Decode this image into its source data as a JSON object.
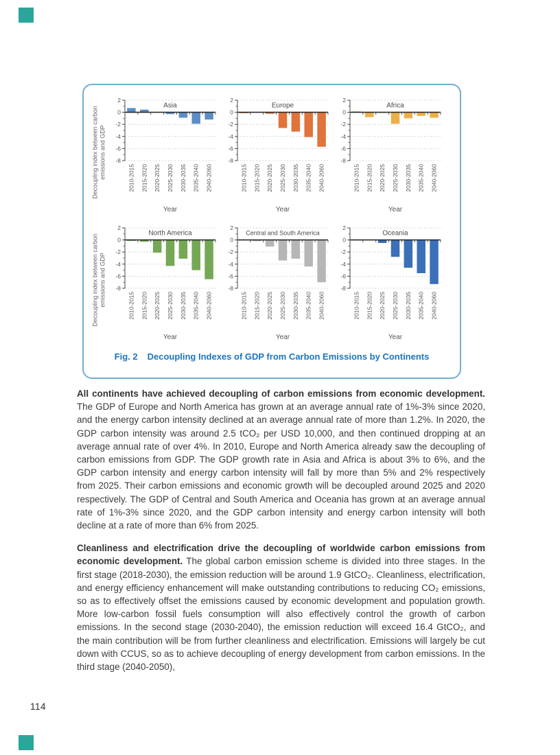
{
  "page": {
    "number": "114",
    "accent_color": "#2aa69a"
  },
  "figure": {
    "caption_prefix": "Fig. 2",
    "caption_text": "Decoupling Indexes of GDP from Carbon Emissions by Continents",
    "caption_color": "#1b75bc",
    "border_color": "#74aed3"
  },
  "chart_data": {
    "type": "bar",
    "categories": [
      "2010-2015",
      "2015-2020",
      "2020-2025",
      "2025-2030",
      "2030-2035",
      "2035-2040",
      "2040-2060"
    ],
    "xlabel": "Year",
    "ylabel": "Decoupling index between carbon emissions and GDP",
    "ylabel_lines": [
      "Decoupling index between carbon",
      "emissions and GDP"
    ],
    "ylim": [
      -8,
      2
    ],
    "yticks": [
      2,
      0,
      -2,
      -4,
      -6,
      -8
    ],
    "grid": "horizontal dashed at yticks except zero line",
    "legend_position": "none",
    "series": [
      {
        "name": "Asia",
        "color": "#5b8ec5",
        "values": [
          0.7,
          0.45,
          0,
          -0.3,
          -0.9,
          -1.9,
          -1.2
        ]
      },
      {
        "name": "Europe",
        "color": "#e0743c",
        "values": [
          -0.15,
          0,
          -0.25,
          -2.6,
          -3.2,
          -4.1,
          -5.7
        ]
      },
      {
        "name": "Africa",
        "color": "#edb049",
        "values": [
          0.15,
          -0.8,
          -0.1,
          -1.9,
          -1.0,
          -0.6,
          -0.9
        ]
      },
      {
        "name": "North America",
        "color": "#75a854",
        "values": [
          -0.15,
          -0.3,
          -2.1,
          -4.3,
          -3.1,
          -5.0,
          -6.5
        ]
      },
      {
        "name": "Central and South America",
        "color": "#b6b6b6",
        "values": [
          0,
          -0.2,
          -1.1,
          -3.4,
          -3.1,
          -4.4,
          -7.0
        ]
      },
      {
        "name": "Oceania",
        "color": "#3b6fb8",
        "values": [
          0,
          0,
          -0.5,
          -2.8,
          -4.6,
          -5.5,
          -7.3
        ]
      }
    ]
  },
  "body": {
    "paragraphs": [
      {
        "lead": "All continents have achieved decoupling of carbon emissions from economic development.",
        "rest": " The GDP of Europe and North America has grown at an average annual rate of 1%-3% since 2020, and the energy carbon intensity declined at an average annual rate of more than 1.2%. In 2020, the GDP carbon intensity was around 2.5 tCO₂ per USD 10,000, and then continued dropping at an average annual rate of over 4%. In 2010, Europe and North America already saw the decoupling of carbon emissions from GDP. The GDP growth rate in Asia and Africa is about 3% to 6%, and the GDP carbon intensity and energy carbon intensity will fall by more than 5% and 2% respectively from 2025. Their carbon emissions and economic growth will be decoupled around 2025 and 2020 respectively. The GDP of Central and South America and Oceania has grown at an average annual rate of 1%-3% since 2020, and the GDP carbon intensity and energy carbon intensity will both decline at a rate of more than 6% from 2025."
      },
      {
        "lead": "Cleanliness and electrification drive the decoupling of worldwide carbon emissions from economic development.",
        "rest": " The global carbon emission scheme is divided into three stages. In the first stage (2018-2030), the emission reduction will be around 1.9 GtCO₂. Cleanliness, electrification, and energy efficiency enhancement will make outstanding contributions to reducing CO₂ emissions, so as to effectively offset the emissions caused by economic development and population growth. More low-carbon fossil fuels consumption will also effectively control the growth of carbon emissions. In the second stage (2030-2040), the emission reduction will exceed 16.4 GtCO₂, and the main contribution will be from further cleanliness and electrification. Emissions will largely be cut down with CCUS, so as to achieve decoupling of energy development from carbon emissions. In the third stage (2040-2050),"
      }
    ]
  }
}
